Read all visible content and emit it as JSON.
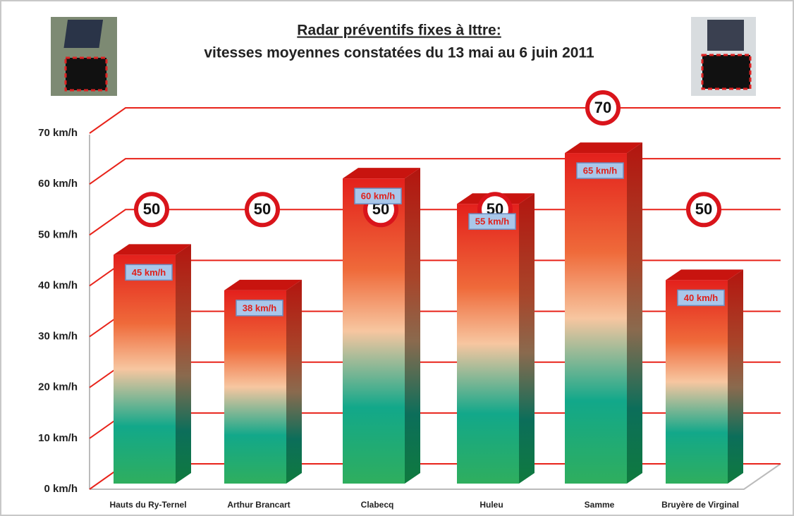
{
  "chart_data": {
    "type": "bar3d",
    "title": "Radar préventifs fixes à Ittre:",
    "subtitle": "vitesses moyennes constatées du 13 mai au 6 juin 2011",
    "categories": [
      "Hauts du Ry-Ternel",
      "Arthur Brancart",
      "Clabecq",
      "Huleu",
      "Samme",
      "Bruyère de Virginal"
    ],
    "values": [
      45,
      38,
      60,
      55,
      65,
      40
    ],
    "value_labels": [
      "45 km/h",
      "38 km/h",
      "60 km/h",
      "55 km/h",
      "65 km/h",
      "40 km/h"
    ],
    "speed_limits": [
      50,
      50,
      50,
      50,
      70,
      50
    ],
    "ylim": [
      0,
      70
    ],
    "yticks": [
      {
        "value": 0,
        "label": "0 km/h"
      },
      {
        "value": 10,
        "label": "10 km/h"
      },
      {
        "value": 20,
        "label": "20 km/h"
      },
      {
        "value": 30,
        "label": "30 km/h"
      },
      {
        "value": 40,
        "label": "40 km/h"
      },
      {
        "value": 50,
        "label": "50 km/h"
      },
      {
        "value": 60,
        "label": "60 km/h"
      },
      {
        "value": 70,
        "label": "70 km/h"
      }
    ],
    "grid": true,
    "grid_color": "#e8231a"
  }
}
